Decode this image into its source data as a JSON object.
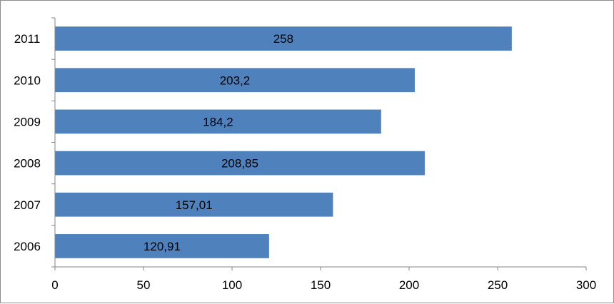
{
  "chart_data": {
    "type": "bar",
    "orientation": "horizontal",
    "categories": [
      "2006",
      "2007",
      "2008",
      "2009",
      "2010",
      "2011"
    ],
    "values": [
      120.91,
      157.01,
      208.85,
      184.2,
      203.2,
      258
    ],
    "value_labels": [
      "120,91",
      "157,01",
      "208,85",
      "184,2",
      "203,2",
      "258"
    ],
    "xlim": [
      0,
      300
    ],
    "x_ticks": [
      "0",
      "50",
      "100",
      "150",
      "200",
      "250",
      "300"
    ],
    "title": "",
    "xlabel": "",
    "ylabel": "",
    "grid": false,
    "legend": "none",
    "bar_color": "#4f81bd"
  }
}
